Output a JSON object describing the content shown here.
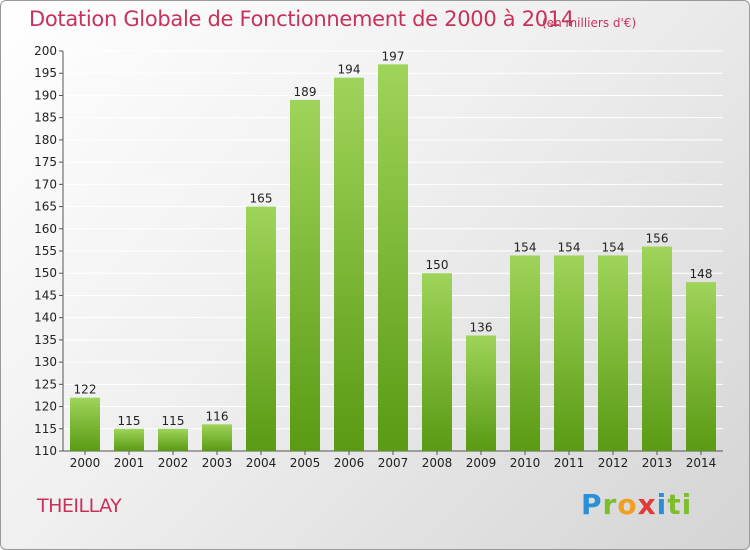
{
  "title": "Dotation Globale de Fonctionnement de 2000 à 2014",
  "subtitle": "(en milliers d'€)",
  "city": "THEILLAY",
  "logo": {
    "text": "Proxiti",
    "letters": [
      "P",
      "r",
      "o",
      "x",
      "i",
      "ti"
    ]
  },
  "colors": {
    "title": "#c8325a",
    "bar_top": "#9fd45a",
    "bar_bottom": "#5a9a14"
  },
  "chart_data": {
    "type": "bar",
    "categories": [
      "2000",
      "2001",
      "2002",
      "2003",
      "2004",
      "2005",
      "2006",
      "2007",
      "2008",
      "2009",
      "2010",
      "2011",
      "2012",
      "2013",
      "2014"
    ],
    "values": [
      122,
      115,
      115,
      116,
      165,
      189,
      194,
      197,
      150,
      136,
      154,
      154,
      154,
      156,
      148
    ],
    "ylim": [
      110,
      200
    ],
    "yticks": [
      110,
      115,
      120,
      125,
      130,
      135,
      140,
      145,
      150,
      155,
      160,
      165,
      170,
      175,
      180,
      185,
      190,
      195,
      200
    ],
    "grid": true,
    "data_labels": true
  }
}
